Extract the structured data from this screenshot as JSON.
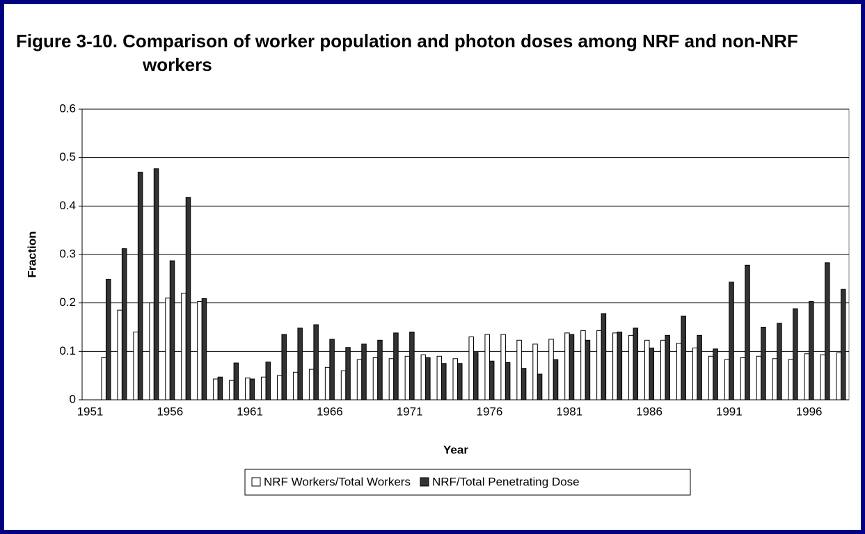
{
  "chart_data": {
    "type": "bar",
    "title": "Figure 3-10. Comparison of worker population and photon doses among NRF and non-NRF workers",
    "x_label": "Year",
    "y_label": "Fraction",
    "categories": [
      "1951",
      null,
      null,
      null,
      null,
      "1956",
      null,
      null,
      null,
      null,
      "1961",
      null,
      null,
      null,
      null,
      "1966",
      null,
      null,
      null,
      null,
      "1971",
      null,
      null,
      null,
      null,
      "1976",
      null,
      null,
      null,
      null,
      "1981",
      null,
      null,
      null,
      null,
      "1986",
      null,
      null,
      null,
      null,
      "1991",
      null,
      null,
      null,
      null,
      "1996",
      null,
      null
    ],
    "series": [
      {
        "name": "NRF Workers/Total Workers",
        "color": "#ffffff",
        "values": [
          null,
          0.087,
          0.185,
          0.14,
          0.2,
          0.21,
          0.22,
          0.203,
          0.043,
          0.04,
          0.045,
          0.047,
          0.05,
          0.057,
          0.063,
          0.067,
          0.06,
          0.083,
          0.087,
          0.085,
          0.09,
          0.093,
          0.09,
          0.085,
          0.13,
          0.135,
          0.135,
          0.123,
          0.115,
          0.125,
          0.138,
          0.143,
          0.143,
          0.138,
          0.133,
          0.123,
          0.123,
          0.117,
          0.107,
          0.09,
          0.083,
          0.087,
          0.09,
          0.085,
          0.083,
          0.095,
          0.093,
          0.097
        ]
      },
      {
        "name": "NRF/Total Penetrating Dose",
        "color": "#333333",
        "values": [
          null,
          0.249,
          0.312,
          0.47,
          0.477,
          0.287,
          0.418,
          0.209,
          0.047,
          0.076,
          0.043,
          0.078,
          0.135,
          0.148,
          0.155,
          0.125,
          0.108,
          0.115,
          0.123,
          0.138,
          0.14,
          0.087,
          0.075,
          0.075,
          0.098,
          0.08,
          0.077,
          0.065,
          0.053,
          0.083,
          0.135,
          0.123,
          0.178,
          0.14,
          0.148,
          0.107,
          0.133,
          0.173,
          0.133,
          0.105,
          0.243,
          0.278,
          0.15,
          0.158,
          0.188,
          0.203,
          0.283,
          0.228
        ]
      }
    ],
    "ylim": [
      0,
      0.6
    ],
    "yticks": [
      0,
      0.1,
      0.2,
      0.3,
      0.4,
      0.5,
      0.6
    ],
    "grid": true,
    "legend": "bottom"
  }
}
